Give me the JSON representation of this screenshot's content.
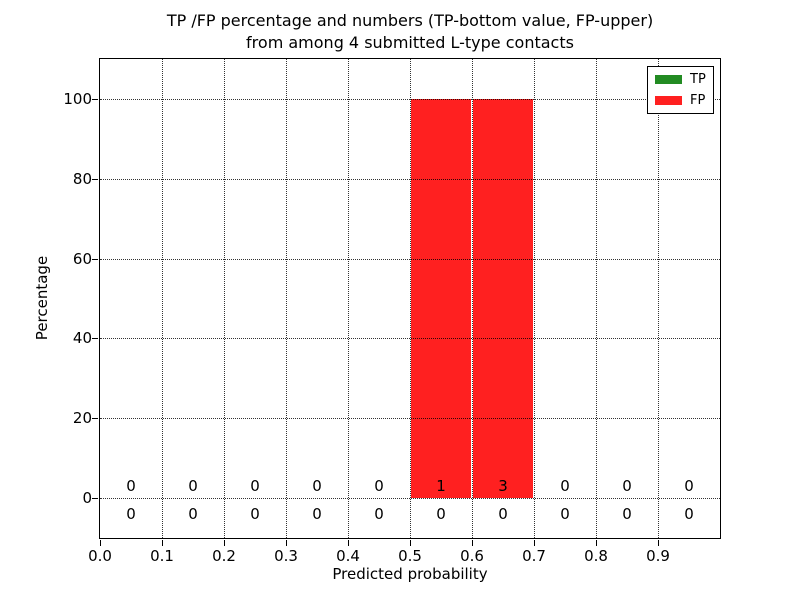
{
  "chart_data": {
    "type": "bar",
    "stacked": true,
    "title_lines": [
      "TP /FP percentage and numbers (TP-bottom value, FP-upper)",
      "from among 4 submitted L-type contacts"
    ],
    "xlabel": "Predicted probability",
    "ylabel": "Percentage",
    "xlim": [
      0.0,
      1.0
    ],
    "ylim": [
      -10,
      110
    ],
    "xticks": [
      0.0,
      0.1,
      0.2,
      0.3,
      0.4,
      0.5,
      0.6,
      0.7,
      0.8,
      0.9
    ],
    "xtick_labels": [
      "0.0",
      "0.1",
      "0.2",
      "0.3",
      "0.4",
      "0.5",
      "0.6",
      "0.7",
      "0.8",
      "0.9"
    ],
    "yticks": [
      0,
      20,
      40,
      60,
      80,
      100
    ],
    "ytick_labels": [
      "0",
      "20",
      "40",
      "60",
      "80",
      "100"
    ],
    "grid": "dotted",
    "bin_edges": [
      0.0,
      0.1,
      0.2,
      0.3,
      0.4,
      0.5,
      0.6,
      0.7,
      0.8,
      0.9,
      1.0
    ],
    "series": [
      {
        "name": "TP",
        "color": "#228b22",
        "percentages": [
          0,
          0,
          0,
          0,
          0,
          0,
          0,
          0,
          0,
          0
        ],
        "counts": [
          0,
          0,
          0,
          0,
          0,
          0,
          0,
          0,
          0,
          0
        ]
      },
      {
        "name": "FP",
        "color": "#ff2020",
        "percentages": [
          0,
          0,
          0,
          0,
          0,
          100,
          100,
          0,
          0,
          0
        ],
        "counts": [
          0,
          0,
          0,
          0,
          0,
          1,
          3,
          0,
          0,
          0
        ]
      }
    ],
    "count_annotations": {
      "upper_row_series": "FP",
      "upper_row_values": [
        "0",
        "0",
        "0",
        "0",
        "0",
        "1",
        "3",
        "0",
        "0",
        "0"
      ],
      "lower_row_series": "TP",
      "lower_row_values": [
        "0",
        "0",
        "0",
        "0",
        "0",
        "0",
        "0",
        "0",
        "0",
        "0"
      ]
    },
    "legend": {
      "position": "upper right",
      "entries": [
        {
          "label": "TP",
          "color": "#228b22"
        },
        {
          "label": "FP",
          "color": "#ff2020"
        }
      ]
    }
  }
}
